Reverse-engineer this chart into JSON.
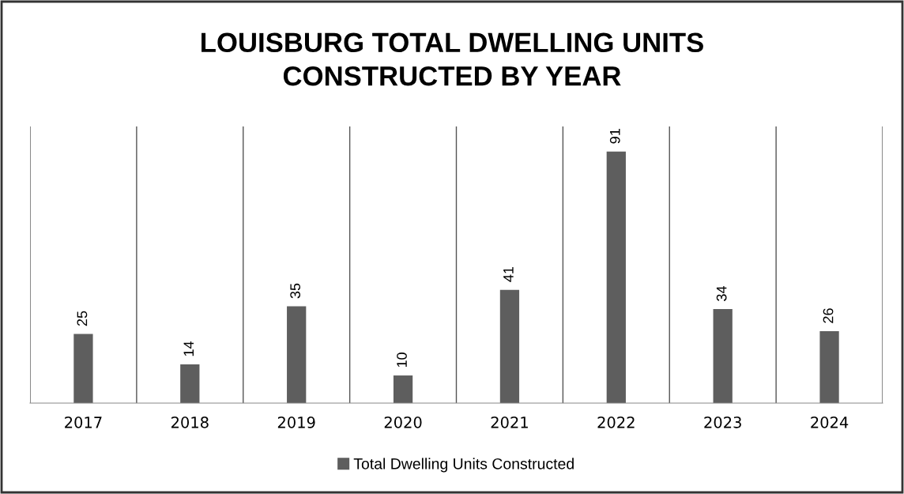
{
  "chart_data": {
    "type": "bar",
    "title": "LOUISBURG TOTAL DWELLING UNITS\nCONSTRUCTED BY YEAR",
    "categories": [
      "2017",
      "2018",
      "2019",
      "2020",
      "2021",
      "2022",
      "2023",
      "2024"
    ],
    "series": [
      {
        "name": "Total Dwelling Units Constructed",
        "color": "#5e5e5e",
        "values": [
          25,
          14,
          35,
          10,
          41,
          91,
          34,
          26
        ]
      }
    ],
    "data_labels": true,
    "grid": "x",
    "legend": "bottom"
  }
}
